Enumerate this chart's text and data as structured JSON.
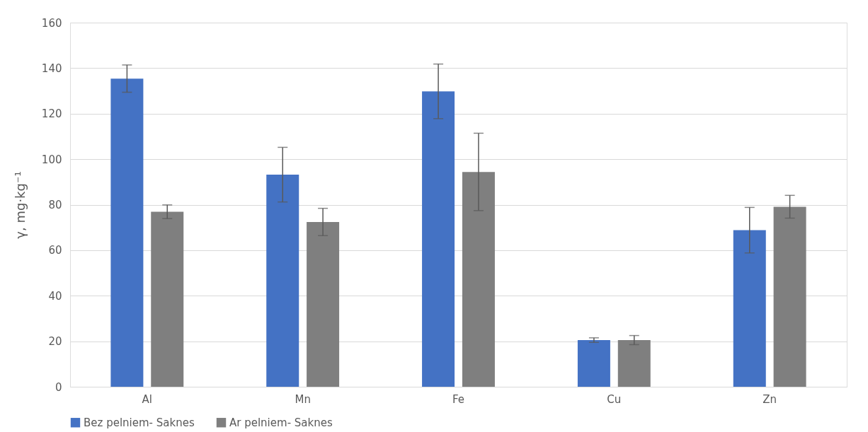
{
  "chart_data": {
    "type": "bar",
    "ylabel": "γ, mg·kg⁻¹",
    "categories": [
      "Al",
      "Mn",
      "Fe",
      "Cu",
      "Zn"
    ],
    "series": [
      {
        "name": "Bez pelniem- Saknes",
        "color": "#4472c4",
        "values": [
          135.4,
          93.2,
          129.8,
          20.5,
          68.8
        ],
        "errors": [
          6,
          12,
          12,
          1,
          10
        ]
      },
      {
        "name": "Ar pelniem- Saknes",
        "color": "#7f7f7f",
        "values": [
          76.9,
          72.4,
          94.4,
          20.5,
          79.1
        ],
        "errors": [
          3,
          6,
          17,
          2,
          5
        ]
      }
    ],
    "ylim": [
      0,
      160
    ],
    "yticks": [
      0,
      20,
      40,
      60,
      80,
      100,
      120,
      140,
      160
    ],
    "grid": "y",
    "legend": "bottom"
  }
}
